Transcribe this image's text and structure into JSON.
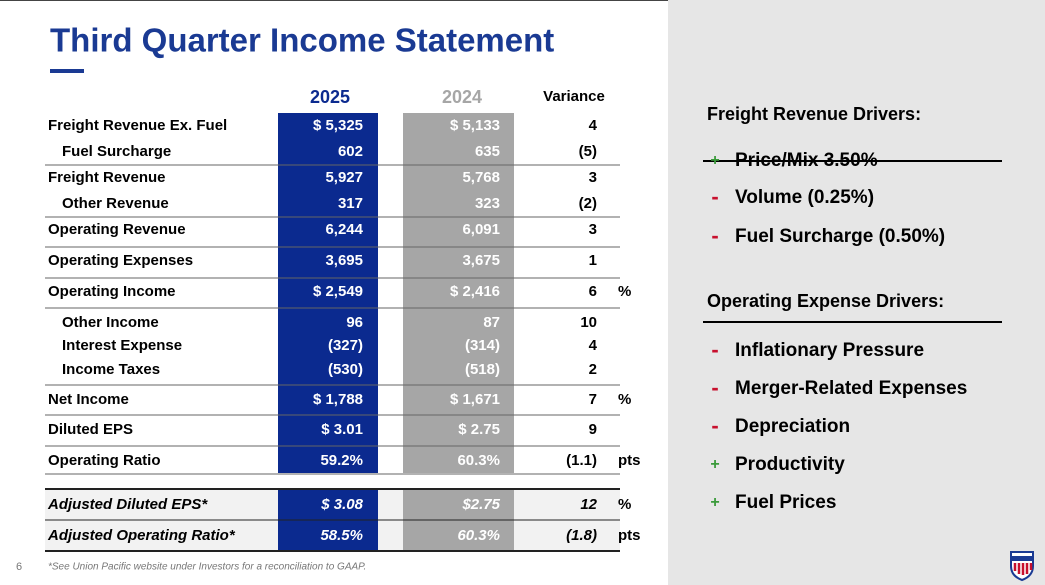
{
  "title": "Third Quarter Income Statement",
  "page_number": "6",
  "footnote": "*See Union Pacific website under Investors for a reconciliation to GAAP.",
  "table": {
    "columns": [
      "2025",
      "2024",
      "Variance"
    ],
    "rows": [
      {
        "label": "Freight Revenue Ex. Fuel",
        "a": "$ 5,325",
        "b": "$ 5,133",
        "variance": "4"
      },
      {
        "label": "Fuel Surcharge",
        "a": "602",
        "b": "635",
        "variance": "(5)"
      },
      {
        "label": "Freight Revenue",
        "a": "5,927",
        "b": "5,768",
        "variance": "3"
      },
      {
        "label": "Other Revenue",
        "a": "317",
        "b": "323",
        "variance": "(2)"
      },
      {
        "label": "Operating Revenue",
        "a": "6,244",
        "b": "6,091",
        "variance": "3"
      },
      {
        "label": "Operating Expenses",
        "a": "3,695",
        "b": "3,675",
        "variance": "1"
      },
      {
        "label": "Operating Income",
        "a": "$ 2,549",
        "b": "$ 2,416",
        "variance": "6",
        "unit": "%"
      },
      {
        "label": "Other Income",
        "a": "96",
        "b": "87",
        "variance": "10"
      },
      {
        "label": "Interest Expense",
        "a": "(327)",
        "b": "(314)",
        "variance": "4"
      },
      {
        "label": "Income Taxes",
        "a": "(530)",
        "b": "(518)",
        "variance": "2"
      },
      {
        "label": "Net Income",
        "a": "$ 1,788",
        "b": "$ 1,671",
        "variance": "7",
        "unit": "%"
      },
      {
        "label": "Diluted EPS",
        "a": "$ 3.01",
        "b": "$ 2.75",
        "variance": "9"
      },
      {
        "label": "Operating Ratio",
        "a": "59.2%",
        "b": "60.3%",
        "variance": "(1.1)",
        "unit": "pts"
      }
    ],
    "adjusted_rows": [
      {
        "label": "Adjusted Diluted EPS*",
        "a": "$ 3.08",
        "b": "$2.75",
        "variance": "12",
        "unit": "%"
      },
      {
        "label": "Adjusted Operating Ratio*",
        "a": "58.5%",
        "b": "60.3%",
        "variance": "(1.8)",
        "unit": "pts"
      }
    ]
  },
  "drivers": [
    {
      "heading": "Freight Revenue Drivers:",
      "items": [
        {
          "sign": "+",
          "text": "Price/Mix 3.50%"
        },
        {
          "sign": "-",
          "text": "Volume (0.25%)"
        },
        {
          "sign": "-",
          "text": "Fuel Surcharge (0.50%)"
        }
      ]
    },
    {
      "heading": "Operating Expense Drivers:",
      "items": [
        {
          "sign": "-",
          "text": "Inflationary Pressure"
        },
        {
          "sign": "-",
          "text": "Merger-Related Expenses"
        },
        {
          "sign": "-",
          "text": "Depreciation"
        },
        {
          "sign": "+",
          "text": "Productivity"
        },
        {
          "sign": "+",
          "text": "Fuel Prices"
        }
      ]
    }
  ]
}
